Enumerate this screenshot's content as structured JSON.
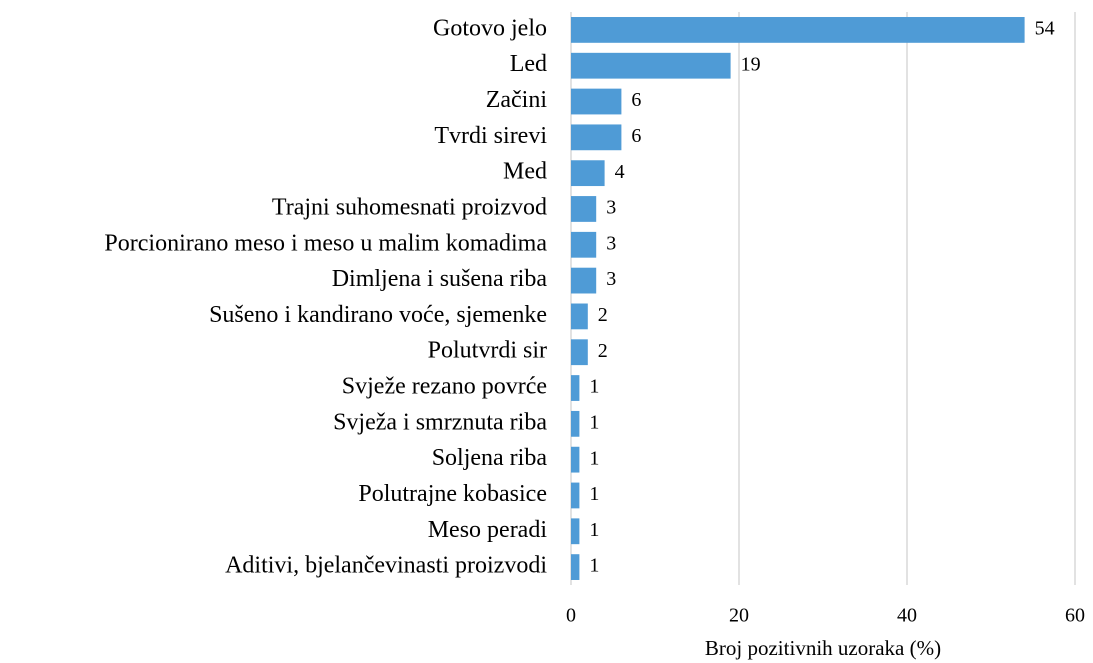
{
  "chart_data": {
    "type": "bar",
    "orientation": "horizontal",
    "x_label": "Broj pozitivnih uzoraka (%)",
    "categories": [
      "Gotovo jelo",
      "Led",
      "Začini",
      "Tvrdi sirevi",
      "Med",
      "Trajni suhomesnati proizvod",
      "Porcionirano meso i meso u malim komadima",
      "Dimljena i sušena riba",
      "Sušeno i kandirano voće, sjemenke",
      "Polutvrdi sir",
      "Svježe rezano povrće",
      "Svježa i smrznuta riba",
      "Soljena riba",
      "Polutrajne kobasice",
      "Meso peradi ",
      "Aditivi, bjelančevinasti proizvodi"
    ],
    "values": [
      54,
      19,
      6,
      6,
      4,
      3,
      3,
      3,
      2,
      2,
      1,
      1,
      1,
      1,
      1,
      1
    ],
    "color": "#4f9bd6",
    "xlim": [
      0,
      60
    ],
    "xticks": [
      0,
      20,
      40,
      60
    ],
    "grid": true
  }
}
